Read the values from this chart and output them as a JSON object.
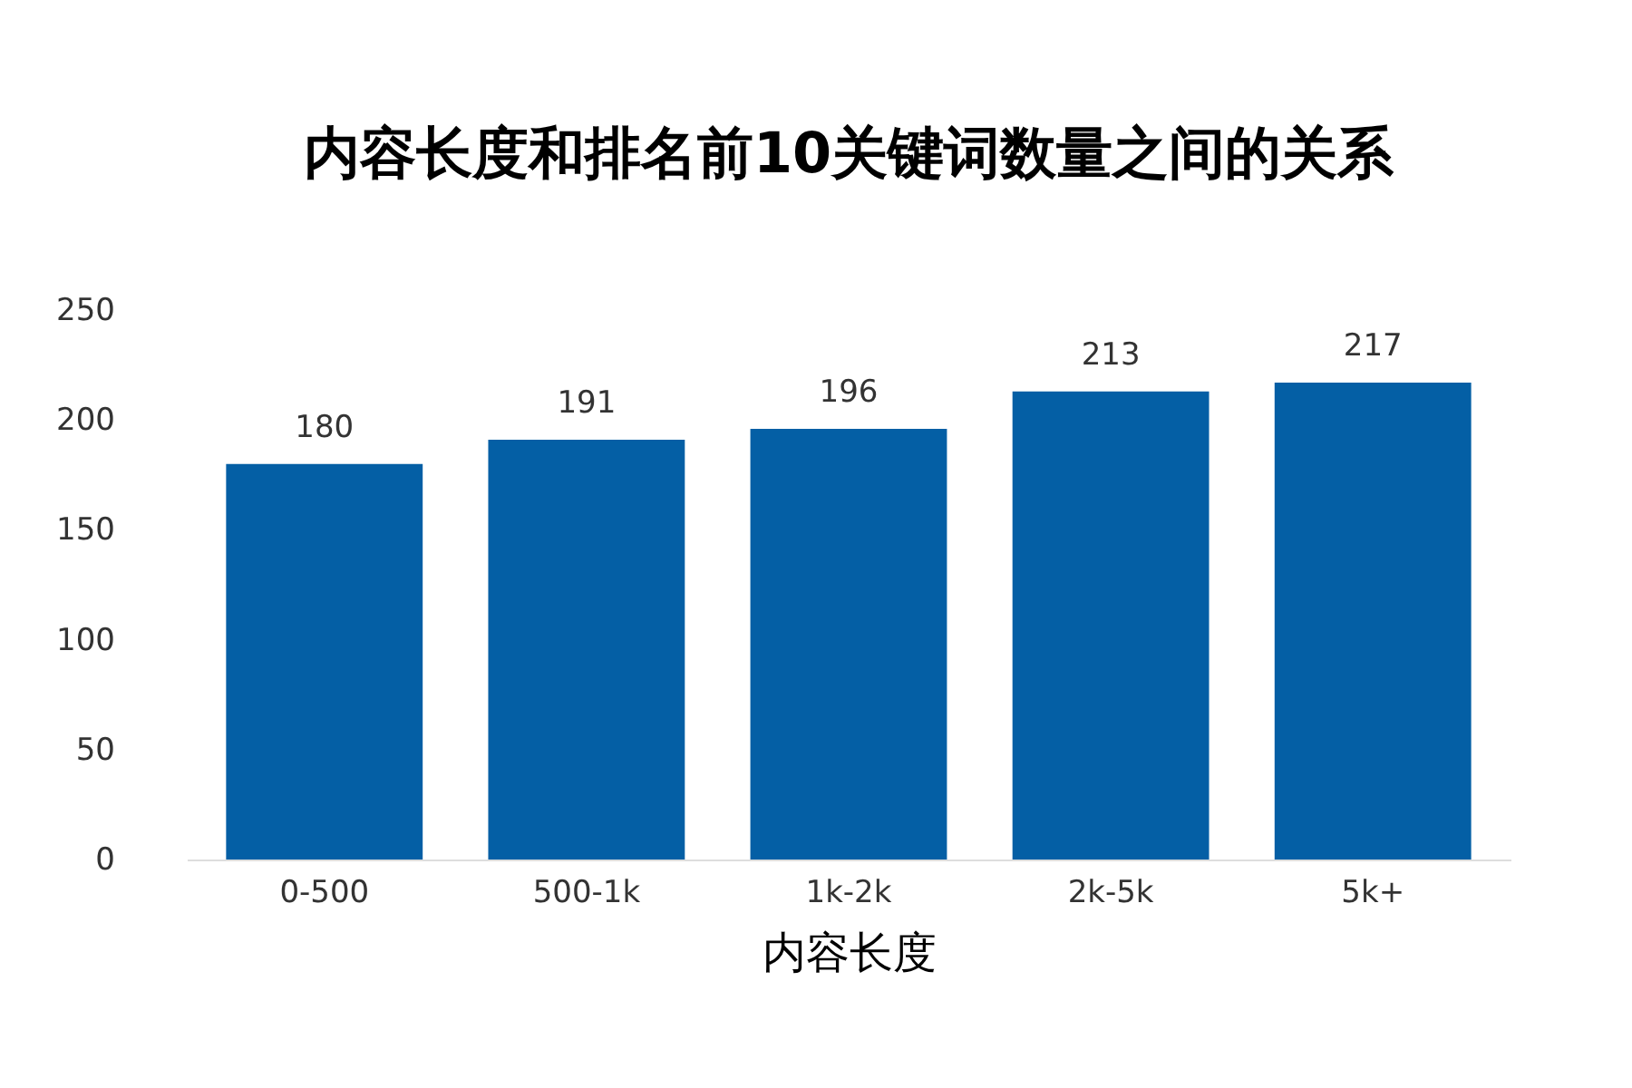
{
  "chart_data": {
    "type": "bar",
    "title": "内容长度和排名前10关键词数量之间的关系",
    "xlabel": "内容长度",
    "categories": [
      "0-500",
      "500-1k",
      "1k-2k",
      "2k-5k",
      "5k+"
    ],
    "values": [
      180,
      191,
      196,
      213,
      217
    ],
    "color": "#045fa5",
    "ylim": [
      0,
      250
    ],
    "yticks": [
      0,
      50,
      100,
      150,
      200,
      250
    ],
    "grid": false,
    "data_labels": true
  }
}
